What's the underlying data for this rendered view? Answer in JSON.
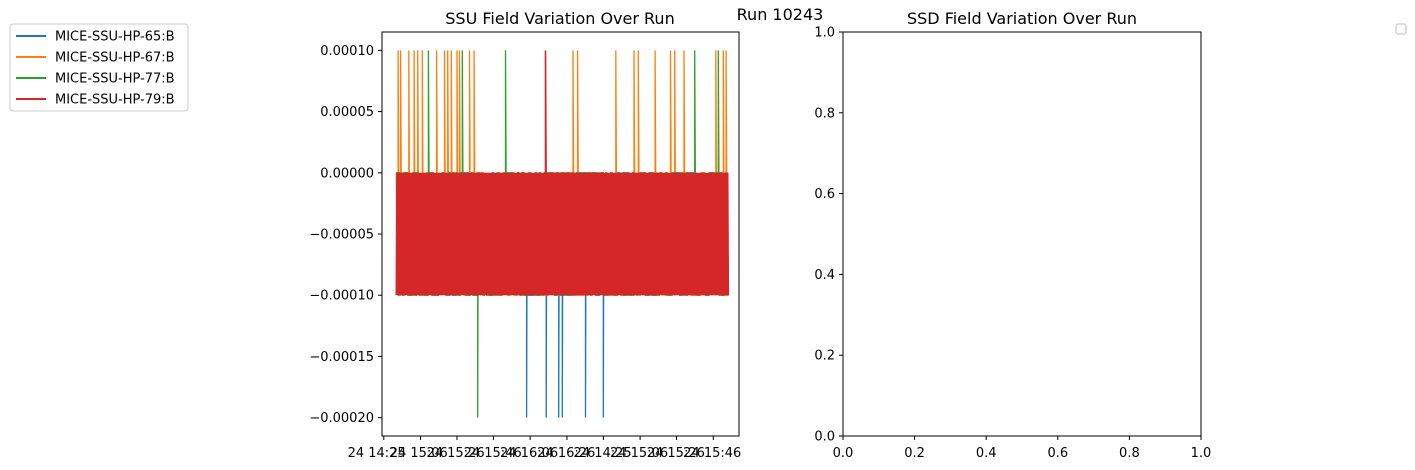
{
  "figure": {
    "suptitle": "Run 10243"
  },
  "legend": {
    "entries": [
      {
        "name": "MICE-SSU-HP-65:B",
        "color": "#1f77b4"
      },
      {
        "name": "MICE-SSU-HP-67:B",
        "color": "#ff7f0e"
      },
      {
        "name": "MICE-SSU-HP-77:B",
        "color": "#2ca02c"
      },
      {
        "name": "MICE-SSU-HP-79:B",
        "color": "#d62728"
      }
    ]
  },
  "chart_data": [
    {
      "type": "line",
      "title": "SSU Field Variation Over Run",
      "xlabel": "",
      "ylabel": "",
      "ylim": [
        -0.000215,
        0.000115
      ],
      "x_tick_labels": [
        "24 14:25",
        "24 15:06",
        "24 15:26",
        "24 15:46",
        "24 16:06",
        "24 16:26"
      ],
      "y_tick_labels": [
        "0.00010",
        "0.00005",
        "0.00000",
        "−0.00005",
        "−0.00010",
        "−0.00015",
        "−0.00020"
      ],
      "y_ticks": [
        0.0001,
        5e-05,
        0,
        -5e-05,
        -0.0001,
        -0.00015,
        -0.0002
      ],
      "x_range": [
        0,
        100
      ],
      "legend_placement": "outside-left",
      "series": [
        {
          "name": "MICE-SSU-HP-65:B",
          "color": "#1f77b4",
          "baseline": 0,
          "low": -0.0001,
          "dense_range": [
            4,
            97
          ],
          "spikes": [
            {
              "x": 40.5,
              "y": -0.0002
            },
            {
              "x": 46,
              "y": -0.0002
            },
            {
              "x": 49.5,
              "y": -0.0002
            },
            {
              "x": 50.5,
              "y": -0.0002
            },
            {
              "x": 57,
              "y": -0.0002
            },
            {
              "x": 62,
              "y": -0.0002
            }
          ]
        },
        {
          "name": "MICE-SSU-HP-67:B",
          "color": "#ff7f0e",
          "baseline": 0,
          "low": -0.0001,
          "dense_range": [
            4,
            97
          ],
          "spikes": [
            {
              "x": 4.5,
              "y": 0.0001
            },
            {
              "x": 5.2,
              "y": 0.0001
            },
            {
              "x": 7.5,
              "y": 0.0001
            },
            {
              "x": 9,
              "y": 0.0001
            },
            {
              "x": 10,
              "y": 0.0001
            },
            {
              "x": 11.3,
              "y": 0.0001
            },
            {
              "x": 15.3,
              "y": 0.0001
            },
            {
              "x": 17.5,
              "y": 0.0001
            },
            {
              "x": 18.4,
              "y": 0.0001
            },
            {
              "x": 19.4,
              "y": 0.0001
            },
            {
              "x": 21,
              "y": 0.0001
            },
            {
              "x": 21.7,
              "y": 0.0001
            },
            {
              "x": 24.5,
              "y": 0.0001
            },
            {
              "x": 25.8,
              "y": 0.0001
            },
            {
              "x": 53.5,
              "y": 0.0001
            },
            {
              "x": 54.8,
              "y": 0.0001
            },
            {
              "x": 65.5,
              "y": 0.0001
            },
            {
              "x": 70.6,
              "y": 0.0001
            },
            {
              "x": 71.8,
              "y": 0.0001
            },
            {
              "x": 76.5,
              "y": 0.0001
            },
            {
              "x": 80.8,
              "y": 0.0001
            },
            {
              "x": 82,
              "y": 0.0001
            },
            {
              "x": 84.6,
              "y": 0.0001
            },
            {
              "x": 93.5,
              "y": 0.0001
            },
            {
              "x": 95.6,
              "y": 0.0001
            },
            {
              "x": 96.4,
              "y": 0.0001
            }
          ]
        },
        {
          "name": "MICE-SSU-HP-77:B",
          "color": "#2ca02c",
          "baseline": 0,
          "low": -0.0001,
          "dense_range": [
            4,
            97
          ],
          "spikes": [
            {
              "x": 13,
              "y": 0.0001
            },
            {
              "x": 22.5,
              "y": 0.0001
            },
            {
              "x": 34.6,
              "y": 0.0001
            },
            {
              "x": 26.8,
              "y": -0.0002
            },
            {
              "x": 87.6,
              "y": 0.0001
            },
            {
              "x": 94.2,
              "y": 0.0001
            }
          ]
        },
        {
          "name": "MICE-SSU-HP-79:B",
          "color": "#d62728",
          "baseline": 0,
          "low": -0.0001,
          "dense_range": [
            4,
            97
          ],
          "spikes": [
            {
              "x": 45.8,
              "y": 0.0001
            }
          ]
        }
      ]
    },
    {
      "type": "line",
      "title": "SSD Field Variation Over Run",
      "xlabel": "",
      "ylabel": "",
      "xlim": [
        0,
        1
      ],
      "ylim": [
        0,
        1
      ],
      "x_ticks": [
        0,
        0.2,
        0.4,
        0.6,
        0.8,
        1
      ],
      "y_ticks": [
        0,
        0.2,
        0.4,
        0.6,
        0.8,
        1
      ],
      "x_tick_labels": [
        "0.0",
        "0.2",
        "0.4",
        "0.6",
        "0.8",
        "1.0"
      ],
      "y_tick_labels": [
        "0.0",
        "0.2",
        "0.4",
        "0.6",
        "0.8",
        "1.0"
      ],
      "series": [],
      "legend_placement": "outside-right (empty)"
    }
  ]
}
